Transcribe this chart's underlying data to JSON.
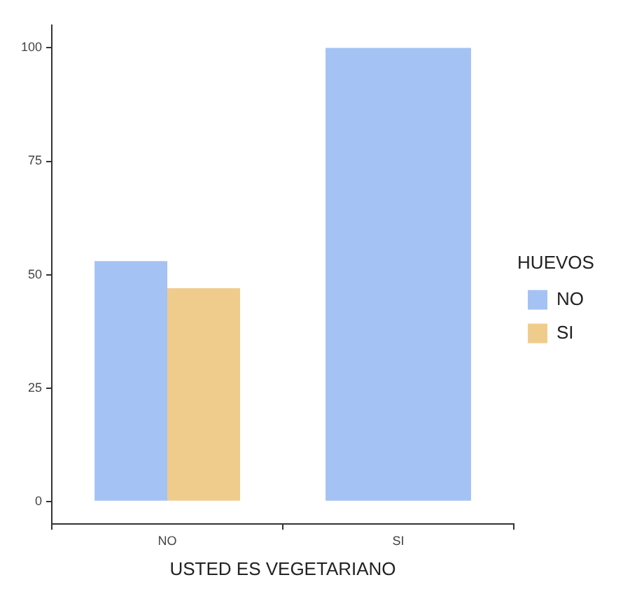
{
  "chart_data": {
    "type": "bar",
    "xlabel": "USTED ES VEGETARIANO",
    "legend_title": "HUEVOS",
    "categories": [
      "NO",
      "SI"
    ],
    "series": [
      {
        "name": "NO",
        "color": "#a4c2f4",
        "values": [
          53,
          100
        ]
      },
      {
        "name": "SI",
        "color": "#f0cc8c",
        "values": [
          47,
          null
        ]
      }
    ],
    "ylim": [
      -5,
      105
    ],
    "yticks": [
      0,
      25,
      50,
      75,
      100
    ],
    "grid": false,
    "legend": "right"
  }
}
